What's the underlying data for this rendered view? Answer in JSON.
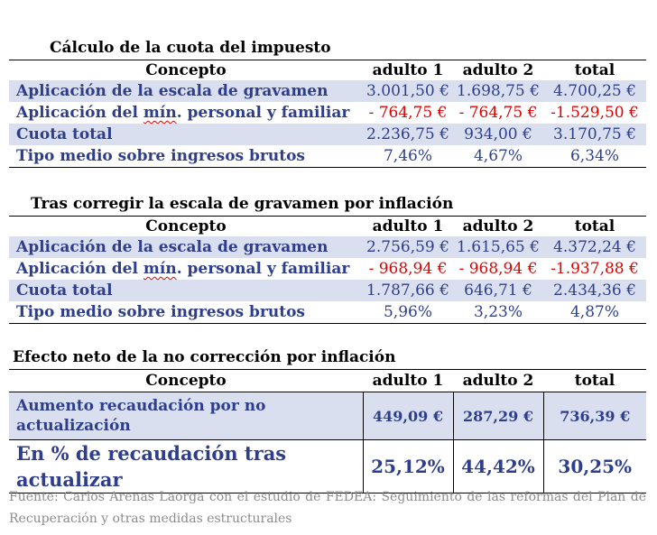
{
  "columns": [
    "Concepto",
    "adulto 1",
    "adulto 2",
    "total"
  ],
  "section1": {
    "title": "Cálculo de la cuota del impuesto",
    "rows": [
      {
        "label": "Aplicación de la escala de gravamen",
        "a1": "3.001,50 €",
        "a2": "1.698,75 €",
        "total": "4.700,25 €"
      },
      {
        "label_pre": "Aplicación del ",
        "label_u": "mín",
        "label_post": ". personal y familiar",
        "a1": "- 764,75 €",
        "a2": "- 764,75 €",
        "total": "-1.529,50 €"
      },
      {
        "label": "Cuota total",
        "a1": "2.236,75 €",
        "a2": "934,00 €",
        "total": "3.170,75 €"
      },
      {
        "label": "Tipo medio sobre ingresos brutos",
        "a1": "7,46%",
        "a2": "4,67%",
        "total": "6,34%"
      }
    ]
  },
  "section2": {
    "title": "Tras corregir la escala de gravamen por inflación",
    "rows": [
      {
        "label": "Aplicación de la escala de gravamen",
        "a1": "2.756,59 €",
        "a2": "1.615,65 €",
        "total": "4.372,24 €"
      },
      {
        "label_pre": "Aplicación del ",
        "label_u": "mín",
        "label_post": ". personal y familiar",
        "a1": "- 968,94 €",
        "a2": "- 968,94 €",
        "total": "-1.937,88 €"
      },
      {
        "label": "Cuota total",
        "a1": "1.787,66 €",
        "a2": "646,71 €",
        "total": "2.434,36 €"
      },
      {
        "label": "Tipo medio sobre ingresos brutos",
        "a1": "5,96%",
        "a2": "3,23%",
        "total": "4,87%"
      }
    ]
  },
  "section3": {
    "title": "Efecto neto de la no corrección por inflación",
    "rows": [
      {
        "label": "Aumento recaudación por no actualización",
        "a1": "449,09 €",
        "a2": "287,29 €",
        "total": "736,39 €"
      },
      {
        "label": "En % de recaudación tras actualizar",
        "a1": "25,12%",
        "a2": "44,42%",
        "total": "30,25%"
      }
    ]
  },
  "source": "Fuente: Carlos Arenas Laorga con el estudio de FEDEA: Seguimiento de las reformas del Plan de Recuperación y otras medidas estructurales",
  "colors": {
    "text_blue": "#2E3E8C",
    "shade": "#D9DFEF",
    "negative_red": "#E00000",
    "source_gray": "#8C8C8C"
  }
}
